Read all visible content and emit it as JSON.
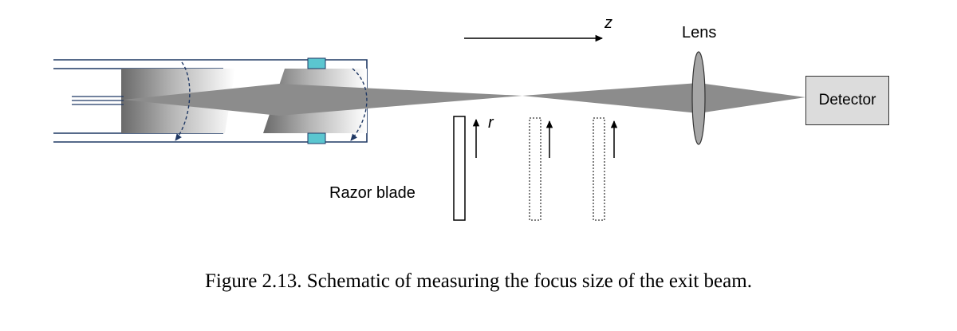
{
  "diagram": {
    "z_label": "z",
    "r_label": "r",
    "lens_label": "Lens",
    "detector_label": "Detector",
    "razor_label": "Razor blade",
    "caption": "Figure 2.13. Schematic of measuring the focus size of the exit beam."
  },
  "colors": {
    "beam": "#8c8c8c",
    "lens_fill": "#a6a6a6",
    "detector_fill": "#dcdcdc",
    "housing_line": "#1f3864",
    "window_fill": "#5bc6d0",
    "rotation_arrow": "#1f3864"
  },
  "icons": {
    "z_arrow": "right-arrow",
    "r_arrow": "up-arrow"
  }
}
